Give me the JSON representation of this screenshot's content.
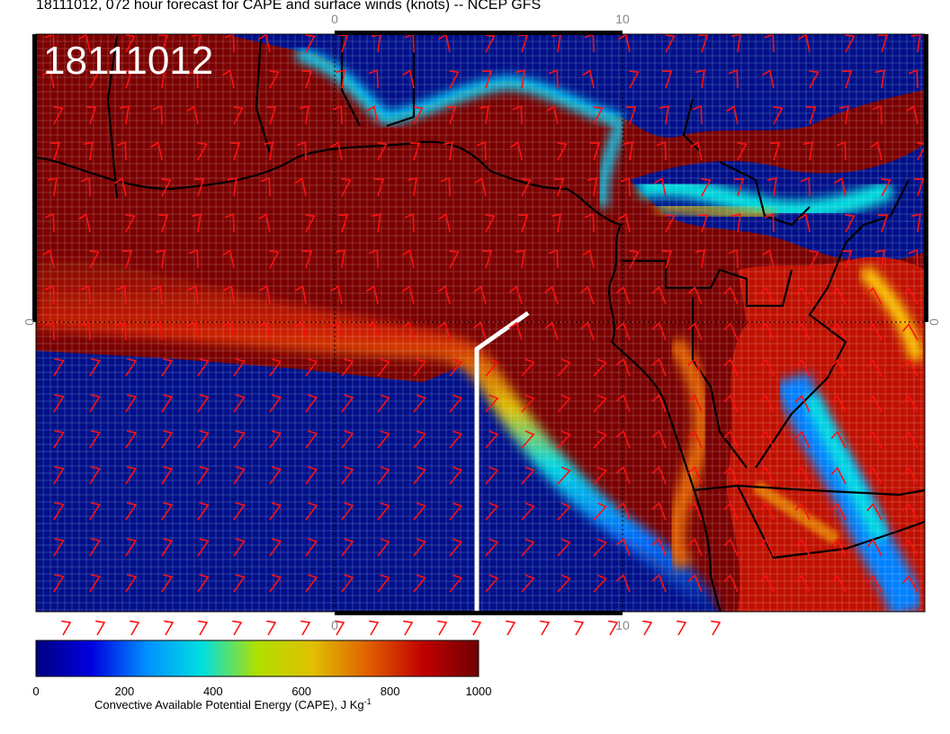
{
  "title": "18111012, 072 hour forecast for CAPE and surface winds (knots) -- NCEP GFS",
  "stamp": "18111012",
  "axes": {
    "top_labels": [
      "0",
      "10"
    ],
    "bottom_labels": [
      "0",
      "10"
    ],
    "left_labels": [
      "0"
    ],
    "right_labels": [
      "0"
    ]
  },
  "colorbar": {
    "ticks": [
      "0",
      "200",
      "400",
      "600",
      "800",
      "1000"
    ],
    "label": "Convective Available Potential Energy (CAPE), J Kg",
    "label_sup": "-1",
    "colors": [
      "#000080",
      "#0000e0",
      "#0090ff",
      "#00e0e0",
      "#b0e000",
      "#e0c000",
      "#e06000",
      "#c00000",
      "#700000"
    ]
  },
  "colors": {
    "background_field": "#7a0000",
    "ocean_field": "#00108a",
    "wind_barb": "#ff1010",
    "coastline": "#000000",
    "track_line": "#ffffff",
    "stamp_text": "#ffffff"
  }
}
